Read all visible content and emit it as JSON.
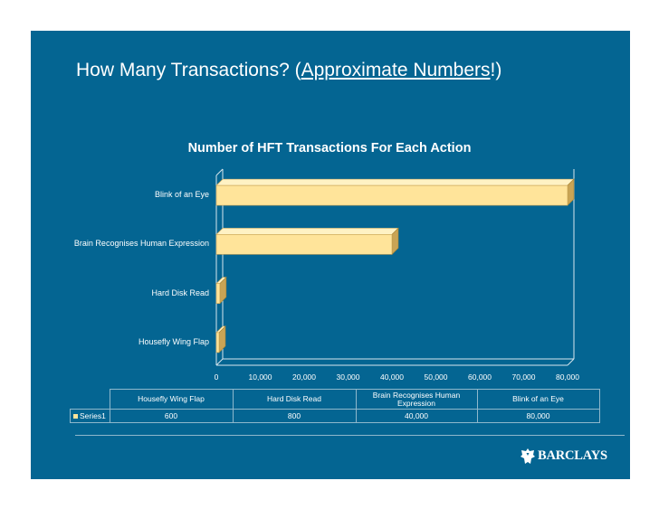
{
  "slide": {
    "title_prefix": "How Many Transactions? (",
    "title_link": "Approximate Numbers",
    "title_suffix": "!)",
    "logo_text": "BARCLAYS",
    "logo_icon": "eagle-icon"
  },
  "chart_data": {
    "type": "bar",
    "orientation": "horizontal",
    "title": "Number of HFT Transactions For Each Action",
    "categories": [
      "Housefly Wing Flap",
      "Hard Disk Read",
      "Brain Recognises Human Expression",
      "Blink of an Eye"
    ],
    "series": [
      {
        "name": "Series1",
        "values": [
          600,
          800,
          40000,
          80000
        ]
      }
    ],
    "xlim": [
      0,
      80000
    ],
    "ticks": [
      "0",
      "10,000",
      "20,000",
      "30,000",
      "40,000",
      "50,000",
      "60,000",
      "70,000",
      "80,000"
    ],
    "value_labels": [
      "600",
      "800",
      "40,000",
      "80,000"
    ],
    "data_table": true,
    "bar_color": "#ffe49a",
    "background_color": "#046592"
  }
}
